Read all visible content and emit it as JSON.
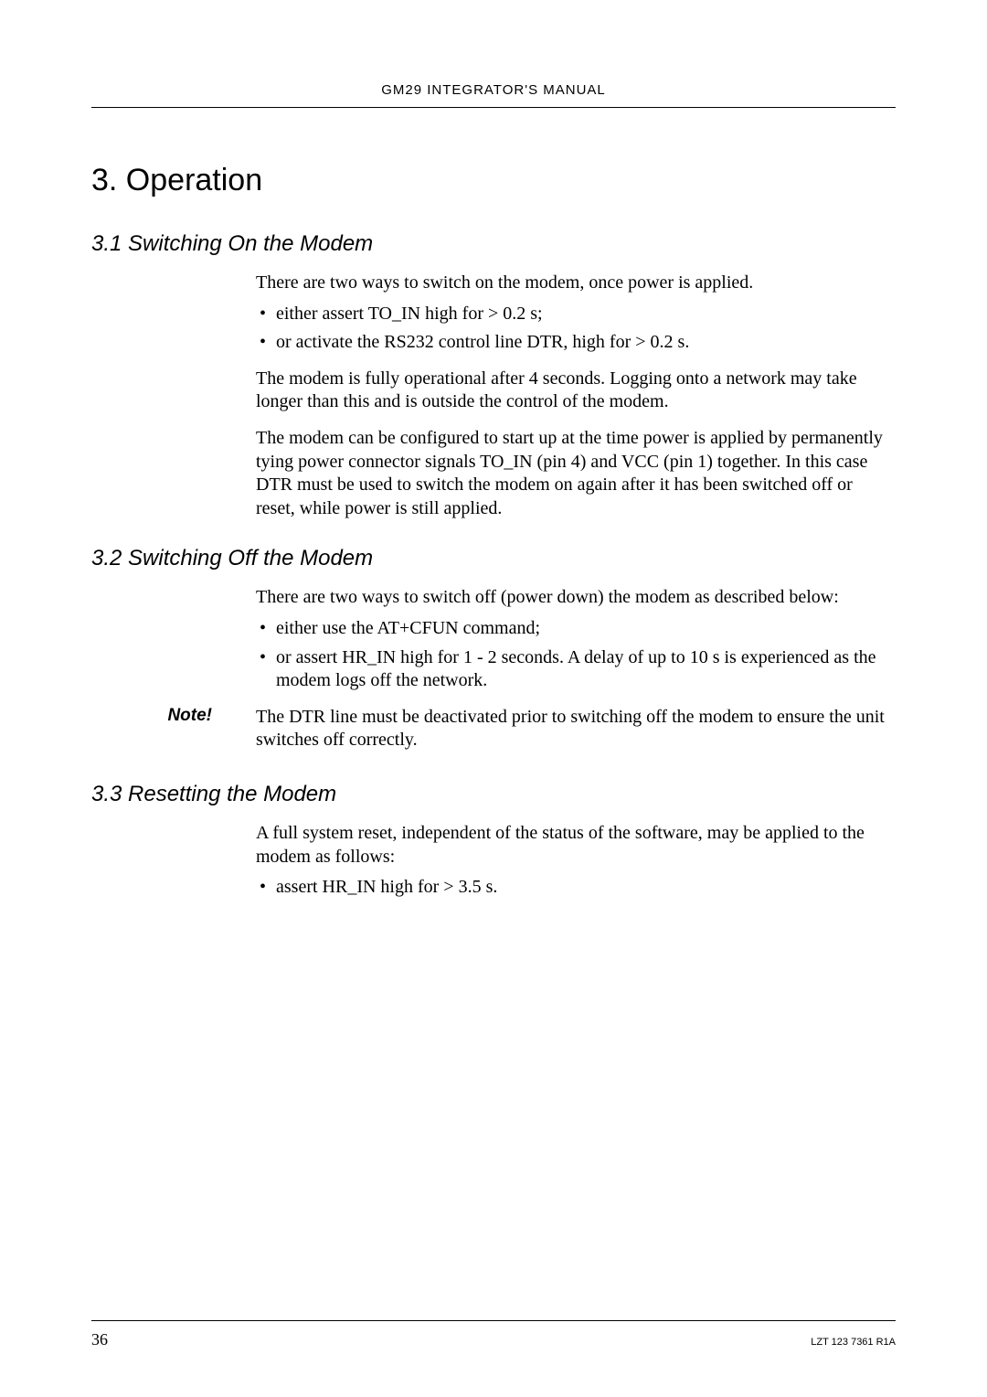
{
  "header": "GM29 INTEGRATOR'S MANUAL",
  "chapter_title": "3. Operation",
  "sections": {
    "s1": {
      "heading": "3.1 Switching On the Modem",
      "p1": "There are two ways to switch on the modem, once power is applied.",
      "bullets": {
        "b1": "either assert TO_IN high for > 0.2 s;",
        "b2": "or activate the RS232 control line DTR, high for > 0.2 s."
      },
      "p2": "The modem is fully operational after 4 seconds. Logging onto a network may take longer than this and is outside the control of the modem.",
      "p3": "The modem can be configured to start up at the time power is applied by permanently tying power connector signals TO_IN (pin 4) and VCC (pin 1) together. In this case DTR must be used to switch the modem on again after it has been switched off or reset, while power is still applied."
    },
    "s2": {
      "heading": "3.2 Switching Off the Modem",
      "p1": "There are two ways to switch off (power down) the modem as described below:",
      "bullets": {
        "b1": "either use the AT+CFUN command;",
        "b2": "or assert HR_IN high for 1 - 2 seconds. A delay of up to 10 s is experienced as the modem logs off the network."
      },
      "note_label": "Note!",
      "note_text": "The DTR line must be deactivated prior to switching off the modem to ensure the unit switches off correctly."
    },
    "s3": {
      "heading": "3.3 Resetting the Modem",
      "p1": "A full system reset, independent of the status of the software, may be applied to the modem as follows:",
      "bullets": {
        "b1": "assert HR_IN high for > 3.5 s."
      }
    }
  },
  "footer": {
    "page": "36",
    "code": "LZT 123 7361 R1A"
  }
}
